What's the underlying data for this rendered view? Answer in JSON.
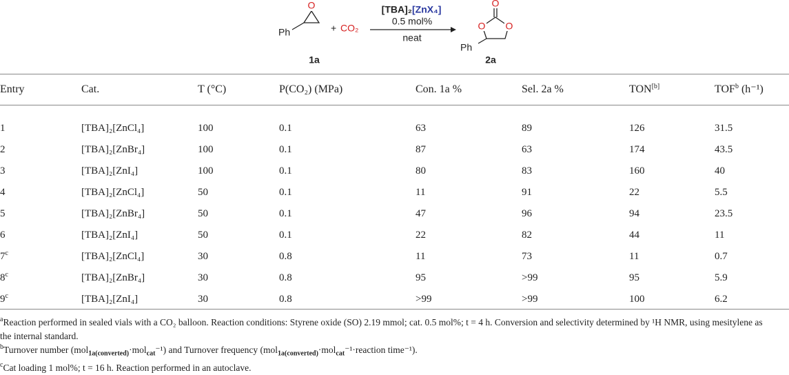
{
  "scheme": {
    "reactant_substituent": "Ph",
    "reactant_oxygen": "O",
    "reactant_id": "1a",
    "plus": "+",
    "co2": "CO₂",
    "catalyst_cation": "[TBA]₂",
    "catalyst_anion": "[ZnX₄]",
    "loading": "0.5 mol%",
    "conditions": "neat",
    "product_substituent": "Ph",
    "product_oxygens": [
      "O",
      "O",
      "O"
    ],
    "product_id": "2a"
  },
  "table": {
    "headers": [
      {
        "text": "Entry"
      },
      {
        "text": "Cat."
      },
      {
        "text": "T (°C)"
      },
      {
        "text": "P(CO₂) (MPa)"
      },
      {
        "text": "Con. 1a %"
      },
      {
        "text": "Sel. 2a %"
      },
      {
        "text": "TON",
        "sup": "[b]"
      },
      {
        "text": "TOF",
        "sup": "b",
        "tail": " (h⁻¹)"
      }
    ],
    "rows": [
      {
        "entry": "1",
        "cat": "[TBA]₂[ZnCl₄]",
        "T": 100,
        "P": 0.1,
        "con": 63,
        "sel": 89,
        "ton": 126,
        "tof": 31.5
      },
      {
        "entry": "2",
        "cat": "[TBA]₂[ZnBr₄]",
        "T": 100,
        "P": 0.1,
        "con": 87,
        "sel": 63,
        "ton": 174,
        "tof": 43.5
      },
      {
        "entry": "3",
        "cat": "[TBA]₂[ZnI₄]",
        "T": 100,
        "P": 0.1,
        "con": 80,
        "sel": 83,
        "ton": 160,
        "tof": 40
      },
      {
        "entry": "4",
        "cat": "[TBA]₂[ZnCl₄]",
        "T": 50,
        "P": 0.1,
        "con": 11,
        "sel": 91,
        "ton": 22,
        "tof": 5.5
      },
      {
        "entry": "5",
        "cat": "[TBA]₂[ZnBr₄]",
        "T": 50,
        "P": 0.1,
        "con": 47,
        "sel": 96,
        "ton": 94,
        "tof": 23.5
      },
      {
        "entry": "6",
        "cat": "[TBA]₂[ZnI₄]",
        "T": 50,
        "P": 0.1,
        "con": 22,
        "sel": 82,
        "ton": 44,
        "tof": 11
      },
      {
        "entry": "7",
        "note": "c",
        "cat": "[TBA]₂[ZnCl₄]",
        "T": 30,
        "P": 0.8,
        "con": 11,
        "sel": 73,
        "ton": 11,
        "tof": 0.7
      },
      {
        "entry": "8",
        "note": "c",
        "cat": "[TBA]₂[ZnBr₄]",
        "T": 30,
        "P": 0.8,
        "con": 95,
        "sel": ">99",
        "ton": 95,
        "tof": 5.9
      },
      {
        "entry": "9",
        "note": "c",
        "cat": "[TBA]₂[ZnI₄]",
        "T": 30,
        "P": 0.8,
        "con": ">99",
        "sel": ">99",
        "ton": 100,
        "tof": 6.2
      }
    ]
  },
  "footnotes": [
    {
      "mark": "a",
      "parts": [
        {
          "text": "Reaction performed in sealed vials with a CO₂ balloon. Reaction conditions: Styrene oxide (SO) 2.19 mmol; cat. 0.5 mol%; t = 4 h. Conversion and selectivity determined by ¹H NMR, using mesitylene as the internal standard."
        }
      ]
    },
    {
      "mark": "b",
      "parts": [
        {
          "text": "Turnover number (mol"
        },
        {
          "sub": "1a(converted)"
        },
        {
          "text": "·mol"
        },
        {
          "sub": "cat"
        },
        {
          "text": "⁻¹) and Turnover frequency (mol"
        },
        {
          "sub": "1a(converted)"
        },
        {
          "text": "·mol"
        },
        {
          "sub": "cat"
        },
        {
          "text": "⁻¹·reaction time⁻¹)."
        }
      ]
    },
    {
      "mark": "c",
      "parts": [
        {
          "text": "Cat loading 1 mol%; t = 16 h. Reaction performed in an autoclave."
        }
      ]
    }
  ]
}
